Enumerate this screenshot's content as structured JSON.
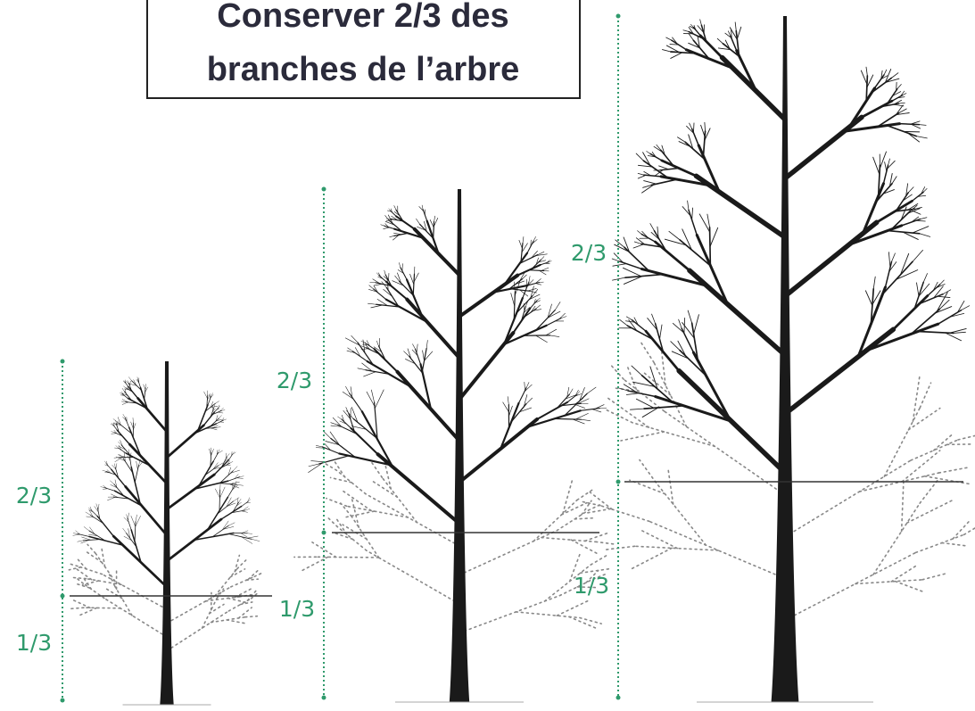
{
  "title": {
    "lines": [
      "Conserver 2/3 des",
      "branches de l’arbre"
    ]
  },
  "trees": [
    {
      "upper_label": "2/3",
      "lower_label": "1/3"
    },
    {
      "upper_label": "2/3",
      "lower_label": "1/3"
    },
    {
      "upper_label": "2/3",
      "lower_label": "1/3"
    }
  ]
}
